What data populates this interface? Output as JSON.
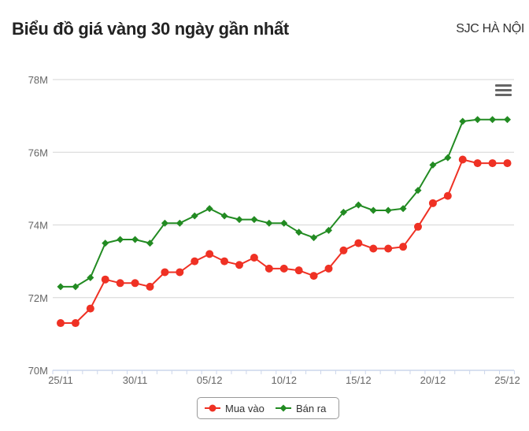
{
  "header": {
    "title": "Biểu đồ giá vàng 30 ngày gần nhất",
    "location": "SJC HÀ NỘI"
  },
  "menu": {
    "icon": "hamburger-menu-icon"
  },
  "legend": {
    "items": [
      {
        "label": "Mua vào",
        "color": "#ef3124",
        "marker": "circle"
      },
      {
        "label": "Bán ra",
        "color": "#228b22",
        "marker": "diamond"
      }
    ]
  },
  "chart_data": {
    "type": "line",
    "title": "Biểu đồ giá vàng 30 ngày gần nhất",
    "subtitle": "SJC HÀ NỘI",
    "xlabel": "",
    "ylabel": "",
    "ylim": [
      70,
      78
    ],
    "yticks": [
      "70M",
      "72M",
      "74M",
      "76M",
      "78M"
    ],
    "xtick_labels": [
      "25/11",
      "30/11",
      "05/12",
      "10/12",
      "15/12",
      "20/12",
      "25/12"
    ],
    "grid": true,
    "legend_position": "bottom-center",
    "x": [
      "25/11",
      "26/11",
      "27/11",
      "28/11",
      "29/11",
      "30/11",
      "01/12",
      "02/12",
      "03/12",
      "04/12",
      "05/12",
      "06/12",
      "07/12",
      "08/12",
      "09/12",
      "10/12",
      "11/12",
      "12/12",
      "13/12",
      "14/12",
      "15/12",
      "16/12",
      "17/12",
      "18/12",
      "19/12",
      "20/12",
      "21/12",
      "22/12",
      "23/12",
      "24/12",
      "25/12"
    ],
    "series": [
      {
        "name": "Mua vào",
        "color": "#ef3124",
        "values": [
          71.3,
          71.3,
          71.7,
          72.5,
          72.4,
          72.4,
          72.3,
          72.7,
          72.7,
          73.0,
          73.2,
          73.0,
          72.9,
          73.1,
          72.8,
          72.8,
          72.75,
          72.6,
          72.8,
          73.3,
          73.5,
          73.35,
          73.35,
          73.4,
          73.95,
          74.6,
          74.8,
          75.8,
          75.7,
          75.7,
          75.7
        ]
      },
      {
        "name": "Bán ra",
        "color": "#228b22",
        "values": [
          72.3,
          72.3,
          72.55,
          73.5,
          73.6,
          73.6,
          73.5,
          74.05,
          74.05,
          74.25,
          74.45,
          74.25,
          74.15,
          74.15,
          74.05,
          74.05,
          73.8,
          73.65,
          73.85,
          74.35,
          74.55,
          74.4,
          74.4,
          74.45,
          74.95,
          75.65,
          75.85,
          76.85,
          76.9,
          76.9,
          76.9
        ]
      }
    ]
  }
}
